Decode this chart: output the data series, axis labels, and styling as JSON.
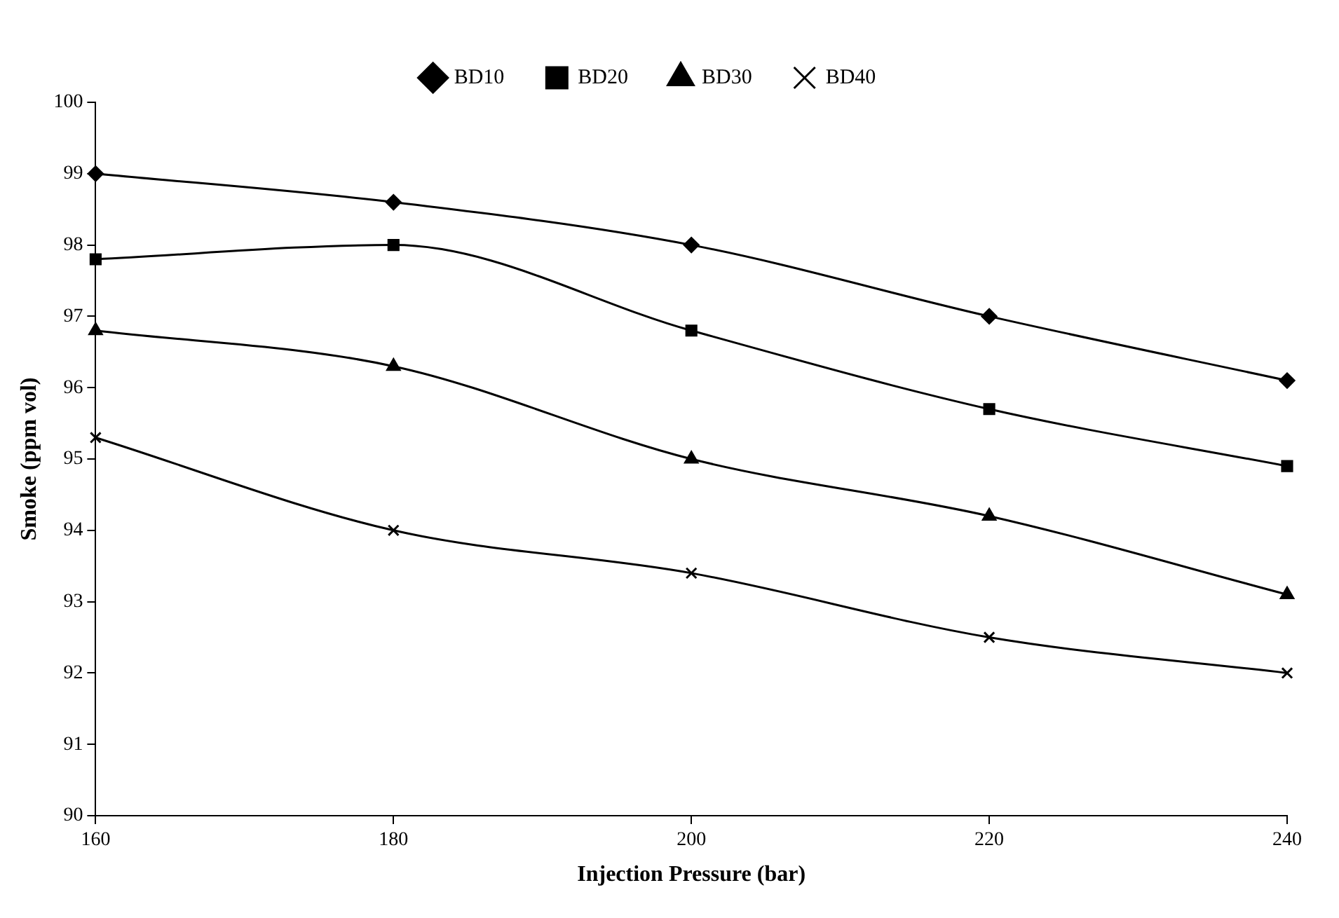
{
  "chart_data": {
    "type": "line",
    "xlabel": "Injection Pressure (bar)",
    "ylabel": "Smoke (ppm vol)",
    "x": [
      160,
      180,
      200,
      220,
      240
    ],
    "xlim": [
      160,
      240
    ],
    "xticks": [
      160,
      180,
      200,
      220,
      240
    ],
    "ylim": [
      90,
      100
    ],
    "yticks": [
      90,
      91,
      92,
      93,
      94,
      95,
      96,
      97,
      98,
      99,
      100
    ],
    "grid": false,
    "legend": "top",
    "series": [
      {
        "name": "BD10",
        "color": "#000000",
        "marker": "diamond",
        "values": [
          99,
          98.6,
          98,
          97,
          96.1
        ]
      },
      {
        "name": "BD20",
        "color": "#000000",
        "marker": "square",
        "values": [
          97.8,
          98,
          96.8,
          95.7,
          94.9
        ]
      },
      {
        "name": "BD30",
        "color": "#000000",
        "marker": "triangle",
        "values": [
          96.8,
          96.3,
          95,
          94.2,
          93.1
        ]
      },
      {
        "name": "BD40",
        "color": "#000000",
        "marker": "cross",
        "values": [
          95.3,
          94,
          93.4,
          92.5,
          92
        ]
      }
    ]
  }
}
